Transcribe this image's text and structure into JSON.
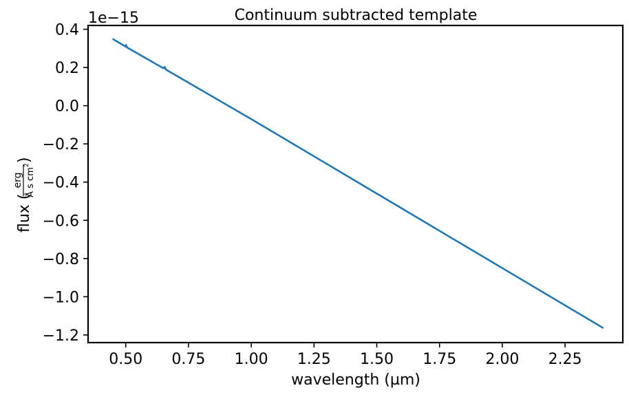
{
  "chart_data": {
    "type": "line",
    "title": "Continuum subtracted template",
    "xlabel": "wavelength (µm)",
    "ylabel": {
      "prefix": "flux (",
      "numerator": "erg",
      "denominator": "Å s cm",
      "exponent": "2",
      "suffix": ")"
    },
    "y_offset_text": "1e−15",
    "xlim": [
      0.35,
      2.48
    ],
    "ylim": [
      -1.24,
      0.42
    ],
    "y_multiplier": 1e-15,
    "grid": false,
    "legend": "none",
    "line_color": "#1f77b4",
    "x_ticks": [
      {
        "value": 0.5,
        "label": "0.50"
      },
      {
        "value": 0.75,
        "label": "0.75"
      },
      {
        "value": 1.0,
        "label": "1.00"
      },
      {
        "value": 1.25,
        "label": "1.25"
      },
      {
        "value": 1.5,
        "label": "1.50"
      },
      {
        "value": 1.75,
        "label": "1.75"
      },
      {
        "value": 2.0,
        "label": "2.00"
      },
      {
        "value": 2.25,
        "label": "2.25"
      }
    ],
    "y_ticks": [
      {
        "value": 0.4,
        "label": "0.4"
      },
      {
        "value": 0.2,
        "label": "0.2"
      },
      {
        "value": 0.0,
        "label": "0.0"
      },
      {
        "value": -0.2,
        "label": "−0.2"
      },
      {
        "value": -0.4,
        "label": "−0.4"
      },
      {
        "value": -0.6,
        "label": "−0.6"
      },
      {
        "value": -0.8,
        "label": "−0.8"
      },
      {
        "value": -1.0,
        "label": "−1.0"
      },
      {
        "value": -1.2,
        "label": "−1.2"
      }
    ],
    "series": [
      {
        "x": [
          0.45,
          0.5,
          0.501,
          0.505,
          0.65,
          0.655,
          0.66,
          1.0,
          1.5,
          2.0,
          2.4
        ],
        "y": [
          0.348,
          0.309,
          0.318,
          0.305,
          0.196,
          0.203,
          0.189,
          -0.07,
          -0.46,
          -0.85,
          -1.162
        ]
      }
    ]
  }
}
